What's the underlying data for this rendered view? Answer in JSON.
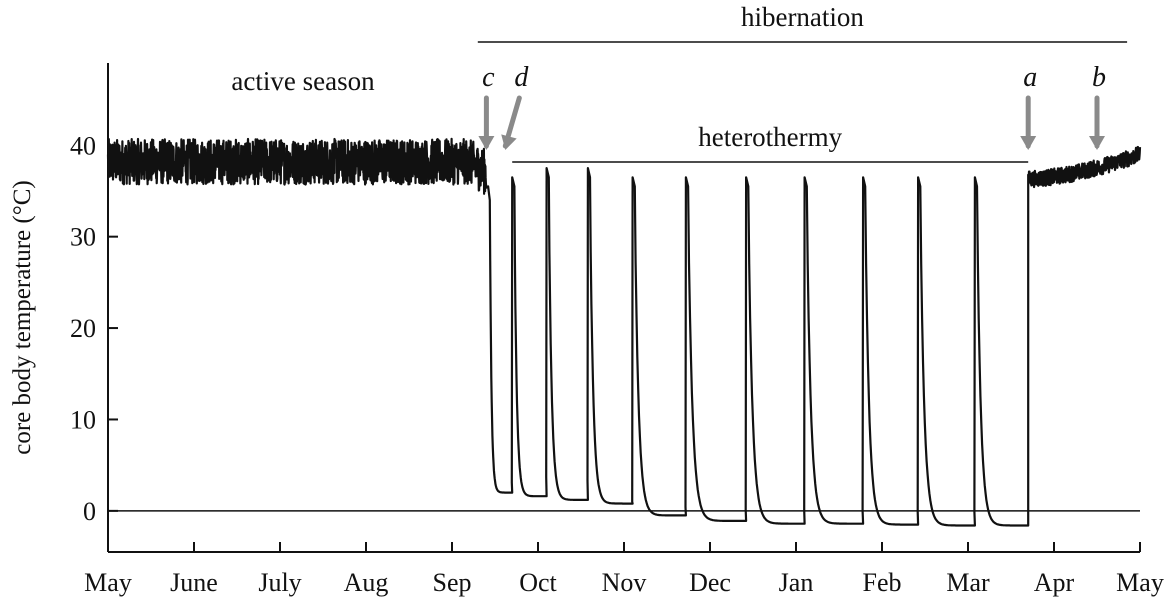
{
  "chart_data": {
    "type": "line",
    "title": "",
    "xlabel": "",
    "ylabel": "core body temperature (°C)",
    "x_tick_labels": [
      "May",
      "June",
      "July",
      "Aug",
      "Sep",
      "Oct",
      "Nov",
      "Dec",
      "Jan",
      "Feb",
      "Mar",
      "Apr",
      "May"
    ],
    "y_ticks": [
      0,
      10,
      20,
      30,
      40
    ],
    "xlim": [
      0,
      12
    ],
    "ylim": [
      -4.5,
      49
    ],
    "grid": false,
    "reference_line_y": 0,
    "series": [
      {
        "name": "",
        "x_units": "months from May",
        "color": "#111111",
        "active_season": {
          "x_start": 0,
          "x_end": 4.4,
          "mean_temp": 38.2,
          "noise_range": 2.5
        },
        "hibernation_entry": {
          "x": 4.42,
          "drop_to": 2.3
        },
        "torpor_bouts": [
          {
            "arousal_x": 4.7,
            "peak": 36.5,
            "min_temp": 2.0
          },
          {
            "arousal_x": 5.1,
            "peak": 37.5,
            "min_temp": 1.6
          },
          {
            "arousal_x": 5.58,
            "peak": 37.5,
            "min_temp": 1.2
          },
          {
            "arousal_x": 6.1,
            "peak": 36.5,
            "min_temp": 0.8
          },
          {
            "arousal_x": 6.72,
            "peak": 36.5,
            "min_temp": -0.5
          },
          {
            "arousal_x": 7.42,
            "peak": 36.5,
            "min_temp": -1.1
          },
          {
            "arousal_x": 8.1,
            "peak": 36.5,
            "min_temp": -1.4
          },
          {
            "arousal_x": 8.78,
            "peak": 36.5,
            "min_temp": -1.4
          },
          {
            "arousal_x": 9.42,
            "peak": 36.5,
            "min_temp": -1.5
          },
          {
            "arousal_x": 10.08,
            "peak": 36.5,
            "min_temp": -1.6
          }
        ],
        "final_arousal": {
          "x": 10.7,
          "to_temp": 36.5
        },
        "post_hibernation": {
          "x_start": 10.7,
          "x_end": 12,
          "temp_start": 36.3,
          "temp_end": 39.0
        }
      }
    ],
    "annotations": {
      "hibernation": {
        "label": "hibernation",
        "x_start": 4.3,
        "x_end": 11.85
      },
      "active_season": {
        "label": "active season"
      },
      "heterothermy": {
        "label": "heterothermy",
        "x_start": 4.7,
        "x_end": 10.7
      },
      "arrows": [
        {
          "letter": "c",
          "x": 4.4,
          "color": "#8a8a8a"
        },
        {
          "letter": "d",
          "x": 4.62,
          "color": "#8a8a8a"
        },
        {
          "letter": "a",
          "x": 10.7,
          "color": "#8a8a8a"
        },
        {
          "letter": "b",
          "x": 11.5,
          "color": "#8a8a8a"
        }
      ]
    }
  }
}
